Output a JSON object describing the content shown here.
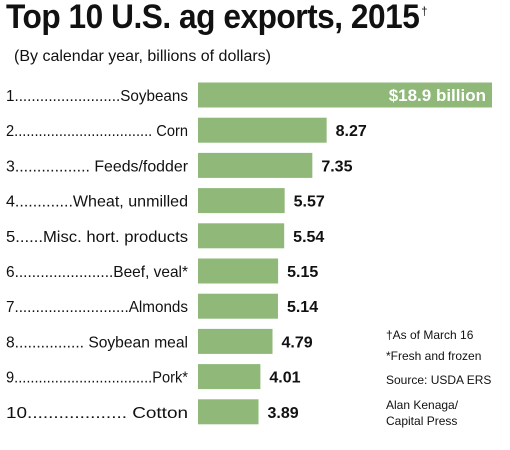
{
  "title": "Top 10 U.S. ag exports, 2015",
  "title_marker": "†",
  "subtitle": "(By calendar year, billions of dollars)",
  "colors": {
    "bar": "#8fb879",
    "text": "#111111",
    "inside_text": "#ffffff"
  },
  "chart_data": {
    "type": "bar",
    "orientation": "horizontal",
    "categories": [
      "1.........................Soybeans",
      "2.................................. Corn",
      "3................. Feeds/fodder",
      "4.............Wheat, unmilled",
      "5......Misc. hort. products",
      "6.......................Beef, veal*",
      "7...........................Almonds",
      "8................ Soybean meal",
      "9..................................Pork*",
      "10................... Cotton"
    ],
    "values": [
      18.9,
      8.27,
      7.35,
      5.57,
      5.54,
      5.15,
      5.14,
      4.79,
      4.01,
      3.89
    ],
    "value_labels": [
      "$18.9 billion",
      "8.27",
      "7.35",
      "5.57",
      "5.54",
      "5.15",
      "5.14",
      "4.79",
      "4.01",
      "3.89"
    ],
    "title": "Top 10 U.S. ag exports, 2015",
    "xlabel": "",
    "ylabel": "",
    "xlim": [
      0,
      18.9
    ],
    "grid": false,
    "legend": "none"
  },
  "notes": {
    "as_of": "†As of March 16",
    "fresh": "*Fresh and frozen",
    "source": "Source: USDA ERS",
    "credit_line1": "Alan Kenaga/",
    "credit_line2": "Capital Press"
  }
}
